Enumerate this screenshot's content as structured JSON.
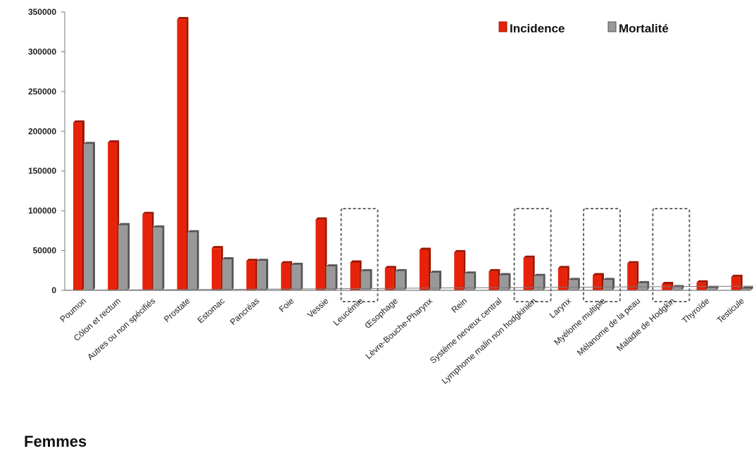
{
  "colors": {
    "incidence": "#e8220a",
    "incidence_dark": "#9c1500",
    "mortality": "#999999",
    "mortality_dark": "#555555",
    "axis": "#777777",
    "highlight_box": "#666666"
  },
  "legend": {
    "incidence": "Incidence",
    "mortality": "Mortalité"
  },
  "footer": {
    "title": "Femmes"
  },
  "chart_data": {
    "type": "bar",
    "title": "",
    "xlabel": "",
    "ylabel": "",
    "ylim": [
      0,
      350000
    ],
    "yticks": [
      0,
      50000,
      100000,
      150000,
      200000,
      250000,
      300000,
      350000
    ],
    "grid": false,
    "legend_position": "top-right",
    "categories": [
      "Poumon",
      "Côlon et rectum",
      "Autres ou non spécifiés",
      "Prostate",
      "Estomac",
      "Pancréas",
      "Foie",
      "Vessie",
      "Leucémie",
      "Œsophage",
      "Lèvre-Bouche-Pharynx",
      "Rein",
      "Système nerveux central",
      "Lymphome malin non hodgkinien",
      "Larynx",
      "Myélome multiple",
      "Mélanome de la peau",
      "Maladie de Hodgkin",
      "Thyroïde",
      "Testicule"
    ],
    "series": [
      {
        "name": "Incidence",
        "values": [
          211000,
          186000,
          96000,
          341000,
          53000,
          37000,
          34000,
          89000,
          35000,
          28000,
          51000,
          48000,
          24000,
          41000,
          28000,
          19000,
          34000,
          8000,
          10000,
          17000
        ]
      },
      {
        "name": "Mortalité",
        "values": [
          184000,
          82000,
          79000,
          73000,
          39000,
          37000,
          32000,
          30000,
          24000,
          24000,
          22000,
          21000,
          19000,
          18000,
          13000,
          13000,
          9000,
          4000,
          3000,
          2000
        ]
      }
    ],
    "highlighted_categories": [
      "Leucémie",
      "Lymphome malin non hodgkinien",
      "Myélome multiple",
      "Maladie de Hodgkin"
    ]
  }
}
